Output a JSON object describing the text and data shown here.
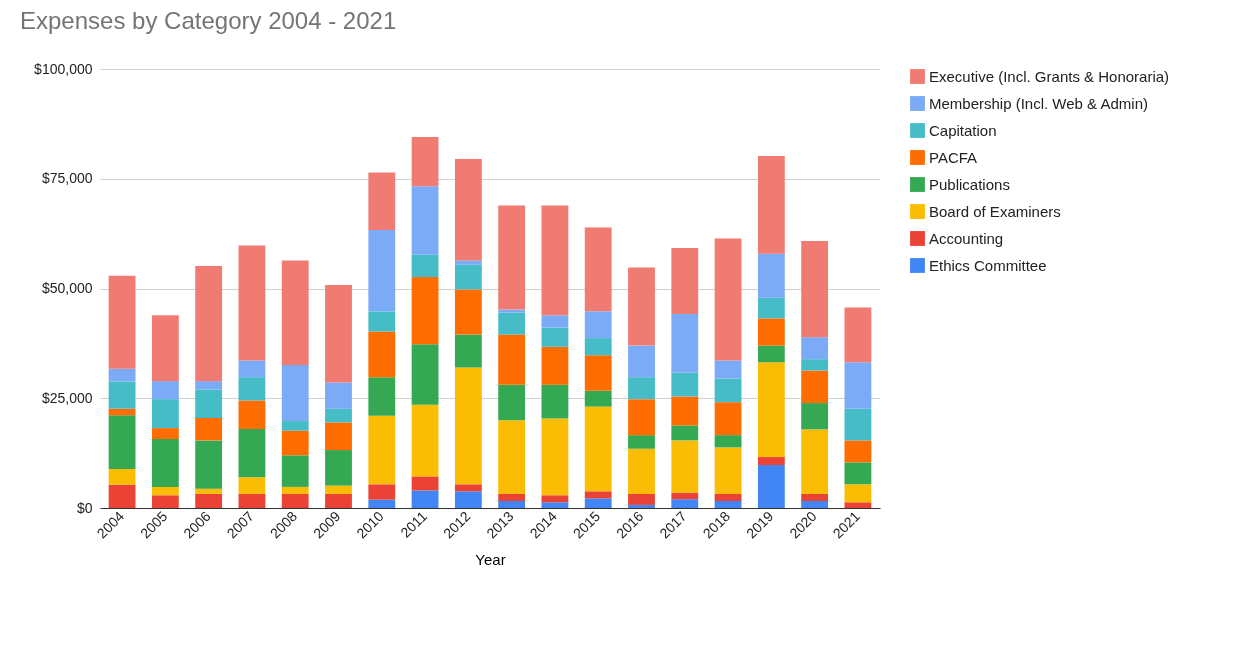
{
  "chart_data": {
    "type": "bar",
    "title": "Expenses by Category 2004 - 2021",
    "xlabel": "Year",
    "categories": [
      "2004",
      "2005",
      "2006",
      "2007",
      "2008",
      "2009",
      "2010",
      "2011",
      "2012",
      "2013",
      "2014",
      "2015",
      "2016",
      "2017",
      "2018",
      "2019",
      "2020",
      "2021"
    ],
    "stacked": true,
    "series": [
      {
        "name": "Ethics Committee",
        "color": "#4285f4",
        "values": [
          0,
          0,
          0,
          0,
          0,
          0,
          1900,
          4000,
          3800,
          1600,
          1300,
          2200,
          700,
          2000,
          1600,
          9800,
          1600,
          0
        ]
      },
      {
        "name": "Accounting",
        "color": "#ea4335",
        "values": [
          5300,
          2900,
          3200,
          3200,
          3200,
          3200,
          3500,
          3200,
          1600,
          1600,
          1600,
          1600,
          2500,
          1500,
          1600,
          1800,
          1600,
          1300
        ]
      },
      {
        "name": "Board of Examiners",
        "color": "#fbbc04",
        "values": [
          3600,
          1900,
          1200,
          3800,
          1600,
          1900,
          15600,
          16300,
          26600,
          16800,
          17500,
          19300,
          10300,
          11900,
          10600,
          21600,
          14700,
          4100
        ]
      },
      {
        "name": "Publications",
        "color": "#34a853",
        "values": [
          12200,
          10900,
          11000,
          11000,
          7200,
          8100,
          8800,
          13800,
          7500,
          8100,
          7700,
          3600,
          3100,
          3400,
          2800,
          3800,
          6000,
          5000
        ]
      },
      {
        "name": "PACFA",
        "color": "#ff6d01",
        "values": [
          1500,
          2500,
          5100,
          6500,
          5600,
          6300,
          10400,
          15300,
          10300,
          11400,
          8600,
          8100,
          8200,
          6600,
          7500,
          6200,
          7400,
          5000
        ]
      },
      {
        "name": "Capitation",
        "color": "#46bdc6",
        "values": [
          6200,
          6600,
          6500,
          5300,
          2200,
          3100,
          4600,
          5100,
          5600,
          5000,
          4400,
          3900,
          5000,
          5400,
          5400,
          4700,
          2600,
          7200
        ]
      },
      {
        "name": "Membership (Incl. Web & Admin)",
        "color": "#7baaf7",
        "values": [
          2900,
          4100,
          1900,
          3800,
          12800,
          6000,
          18500,
          15600,
          1000,
          700,
          2800,
          6100,
          7200,
          13400,
          4100,
          10000,
          5000,
          10600
        ]
      },
      {
        "name": "Executive (Incl. Grants & Honoraria)",
        "color": "#f07b72",
        "values": [
          21200,
          15000,
          26200,
          26200,
          23800,
          22200,
          13100,
          11200,
          23100,
          23700,
          25000,
          19100,
          17800,
          15000,
          27800,
          22300,
          21900,
          12500
        ]
      }
    ],
    "ylim": [
      0,
      100000
    ],
    "yticks": [
      {
        "value": 0,
        "label": "$0"
      },
      {
        "value": 25000,
        "label": "$25,000"
      },
      {
        "value": 50000,
        "label": "$50,000"
      },
      {
        "value": 75000,
        "label": "$75,000"
      },
      {
        "value": 100000,
        "label": "$100,000"
      }
    ],
    "grid": "y",
    "legend": "right"
  }
}
